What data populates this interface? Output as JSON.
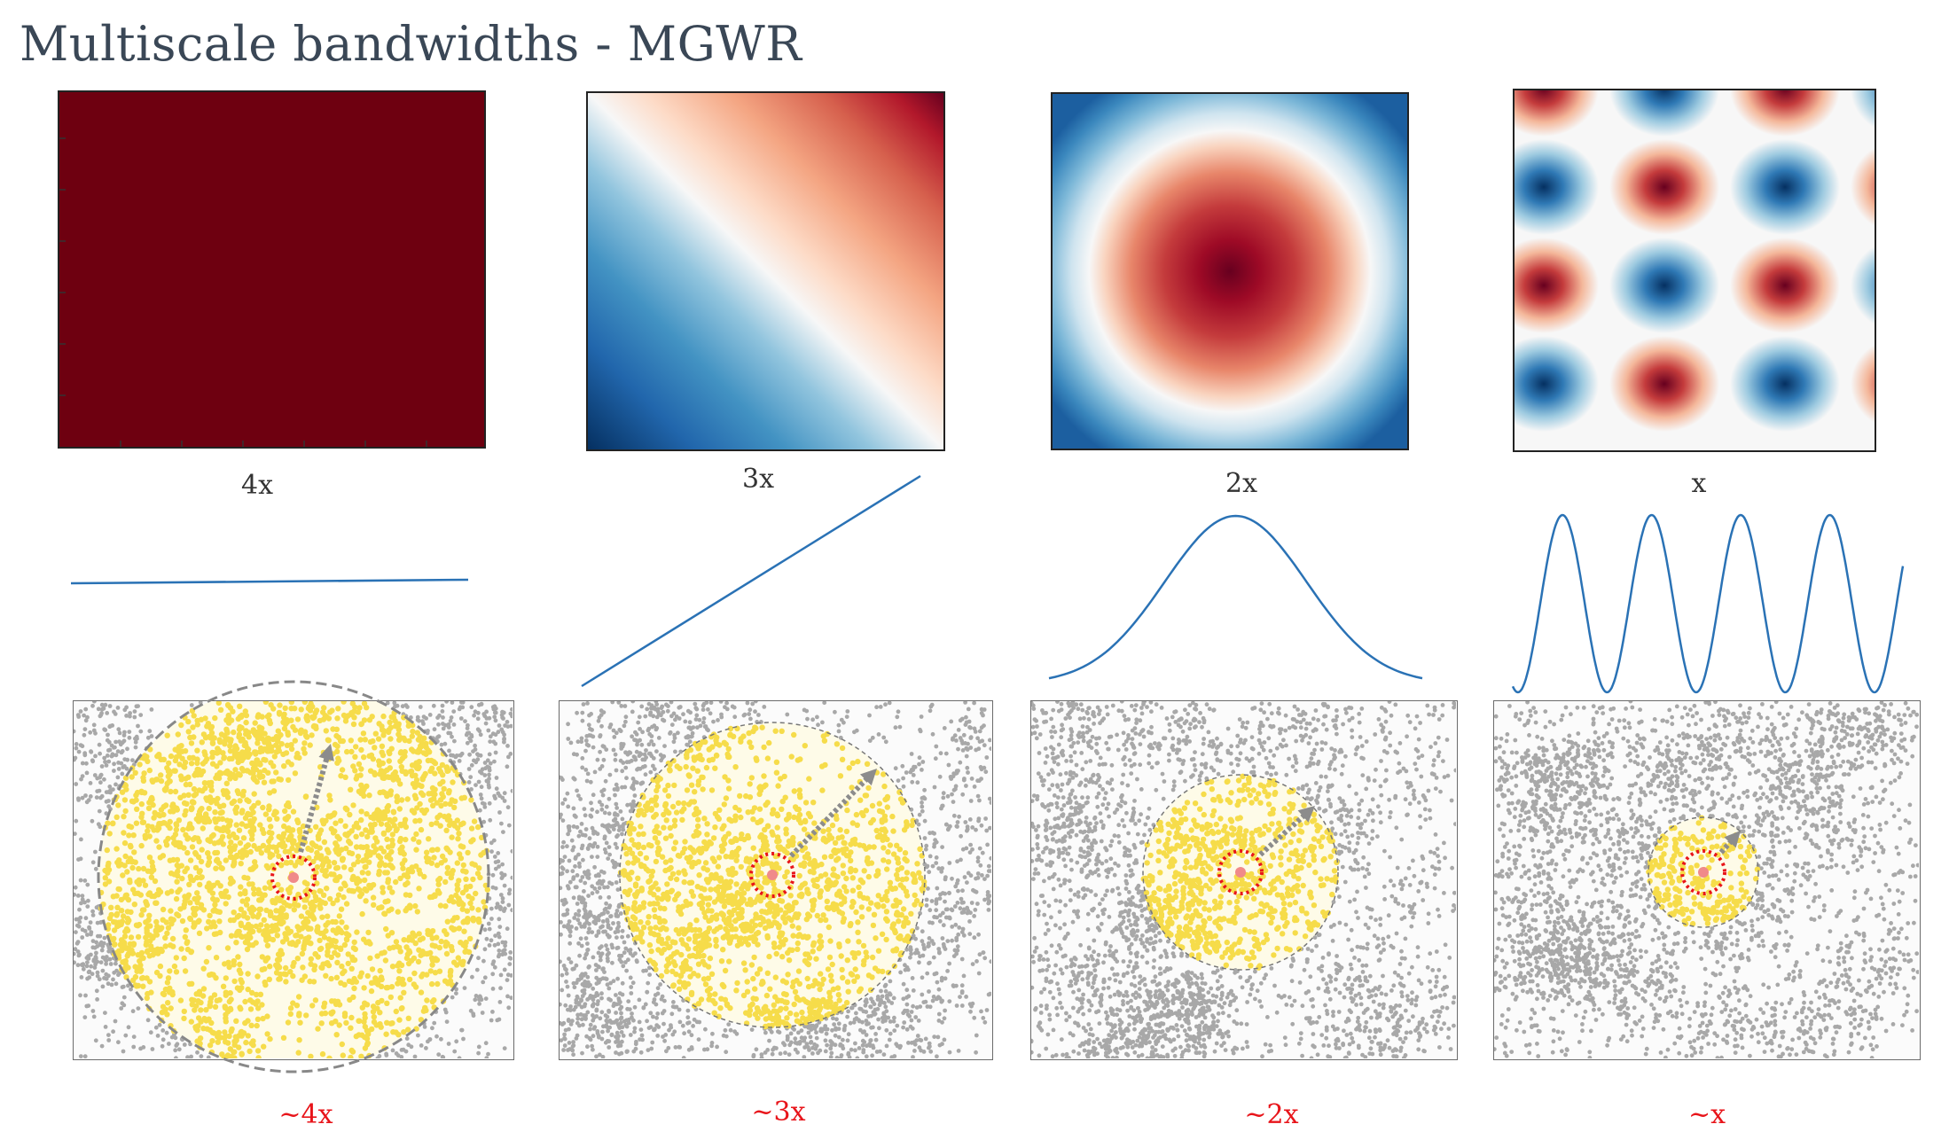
{
  "title": "Multiscale bandwidths - MGWR",
  "panels": [
    {
      "label": "4x",
      "bandwidth_label": "~4x"
    },
    {
      "label": "3x",
      "bandwidth_label": "~3x"
    },
    {
      "label": "2x",
      "bandwidth_label": "~2x"
    },
    {
      "label": "x",
      "bandwidth_label": "~x"
    }
  ],
  "colors": {
    "title": "#3a4756",
    "dark_red": "#6e0010",
    "blue_line": "#2a72b5",
    "yellow": "#f6dc4a",
    "gray_points": "#a8a8a8",
    "red_label": "#e8141a"
  }
}
